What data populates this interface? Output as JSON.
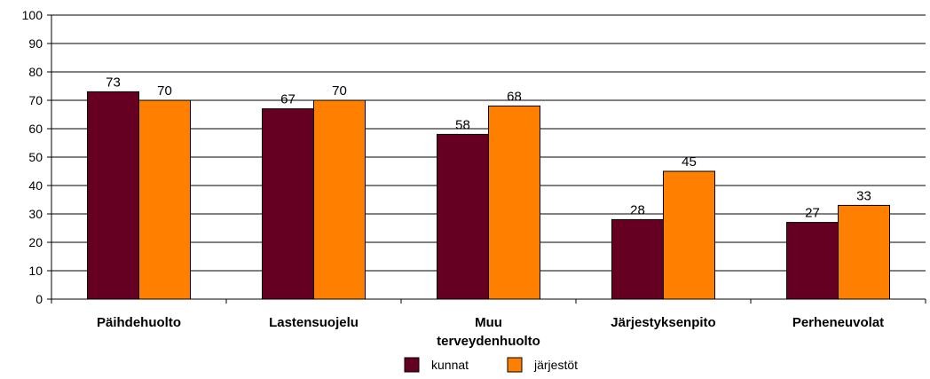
{
  "chart_data": {
    "type": "bar",
    "categories": [
      "Päihdehuolto",
      "Lastensuojelu",
      "Muu terveydenhuolto",
      "Järjestyksenpito",
      "Perheneuvolat"
    ],
    "category_lines": [
      [
        "Päihdehuolto"
      ],
      [
        "Lastensuojelu"
      ],
      [
        "Muu",
        "terveydenhuolto"
      ],
      [
        "Järjestyksenpito"
      ],
      [
        "Perheneuvolat"
      ]
    ],
    "series": [
      {
        "name": "kunnat",
        "values": [
          73,
          67,
          58,
          28,
          27
        ],
        "color": "#660022"
      },
      {
        "name": "järjestöt",
        "values": [
          70,
          70,
          68,
          45,
          33
        ],
        "color": "#ff8000"
      }
    ],
    "ylim": [
      0,
      100
    ],
    "yticks": [
      0,
      10,
      20,
      30,
      40,
      50,
      60,
      70,
      80,
      90,
      100
    ],
    "grid": true,
    "data_labels": true,
    "legend": "bottom"
  }
}
